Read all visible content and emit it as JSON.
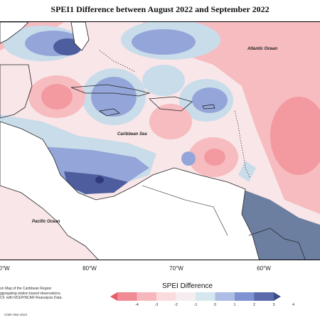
{
  "title": "SPEI1 Difference between August 2022 and September 2022",
  "map_labels": {
    "atlantic": "Atlantic Ocean",
    "caribbean": "Caribbean Sea",
    "pacific": "Pacific Ocean"
  },
  "longitude_ticks": [
    "0°W",
    "80°W",
    "70°W",
    "60°W"
  ],
  "legend": {
    "title": "SPEI Difference",
    "ticks": [
      "-4",
      "-3",
      "-2",
      "-1",
      "0",
      "1",
      "2",
      "3",
      "4"
    ],
    "colors": [
      "#e65a66",
      "#f08a94",
      "#f6b8bd",
      "#fbdcde",
      "#f6edef",
      "#d4e8ee",
      "#aebde6",
      "#7f92d1",
      "#5a6aaa",
      "#3b4a8a"
    ]
  },
  "credits": [
    "on Map of the Caribbean Region",
    "ggregating station based observations,",
    "CF, with NCEP/NCAR Reanalysis Data."
  ],
  "stamp": "CIMH Mar-2023",
  "colors": {
    "land": "#ffffff",
    "coast": "#222222",
    "strong_negative": "#f29aa0",
    "negative": "#f6bcc0",
    "neutral": "#f9e6e8",
    "light_positive": "#c9dcea",
    "positive": "#94a6d9",
    "strong_positive": "#4e5d9e",
    "grey_positive": "#6c7fa0"
  }
}
